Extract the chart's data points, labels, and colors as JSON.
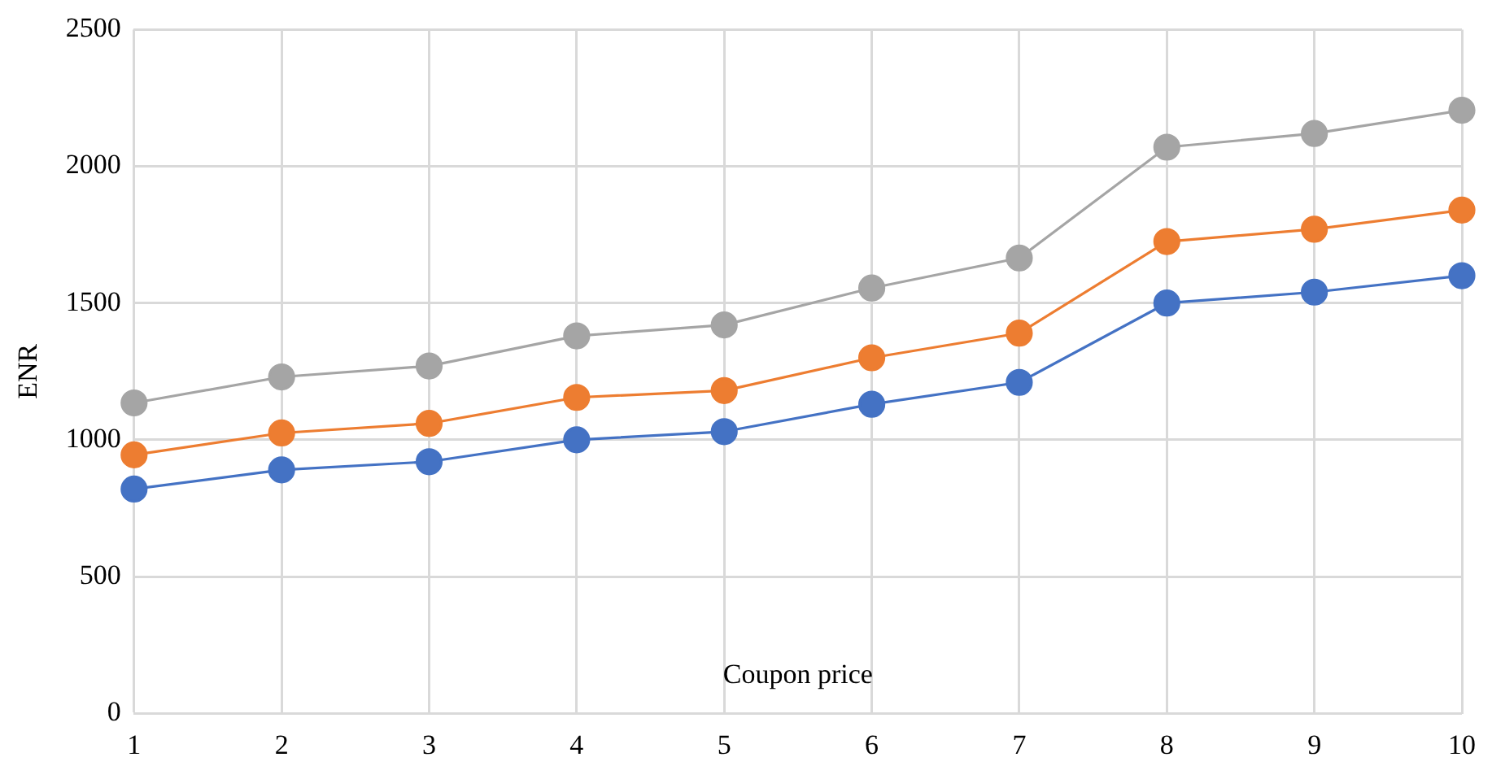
{
  "chart_data": {
    "type": "line",
    "ylabel": "ENR",
    "xlabel": "Coupon price",
    "categories": [
      "1",
      "2",
      "3",
      "4",
      "5",
      "6",
      "7",
      "8",
      "9",
      "10"
    ],
    "series": [
      {
        "color": "#4472c4",
        "values": [
          820,
          890,
          920,
          1000,
          1030,
          1130,
          1210,
          1500,
          1540,
          1600
        ]
      },
      {
        "color": "#ed7d31",
        "values": [
          945,
          1025,
          1060,
          1155,
          1180,
          1300,
          1390,
          1725,
          1770,
          1840
        ]
      },
      {
        "color": "#a5a5a5",
        "values": [
          1135,
          1230,
          1270,
          1380,
          1420,
          1555,
          1665,
          2070,
          2120,
          2205
        ]
      }
    ],
    "ylim": [
      0,
      2500
    ],
    "yticks": [
      0,
      500,
      1000,
      1500,
      2000,
      2500
    ],
    "grid": true,
    "legend": false,
    "marker": "circle",
    "line_style": "solid"
  }
}
